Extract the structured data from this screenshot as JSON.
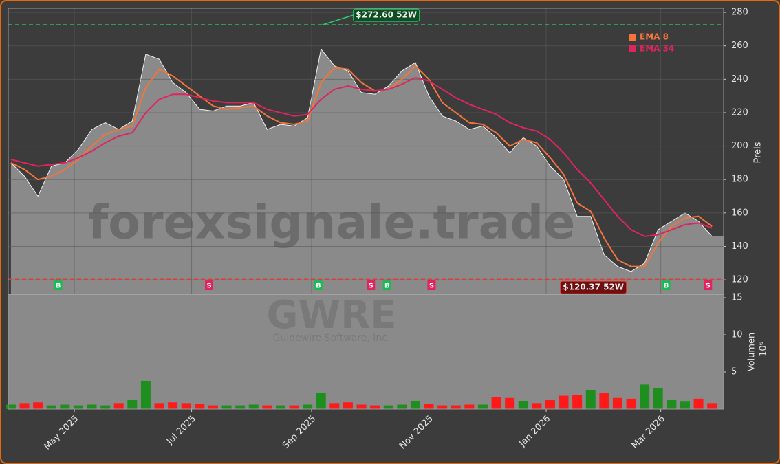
{
  "chart_data": {
    "type": "stock",
    "watermark": "forexsignale.trade",
    "ticker": "GWRE",
    "company": "Guidewire Software, Inc.",
    "y_label": "Preis",
    "x": [
      0,
      1,
      2,
      3,
      4,
      5,
      6,
      7,
      8,
      9,
      10,
      11,
      12,
      13,
      14,
      15,
      16,
      17,
      18,
      19,
      20,
      21,
      22,
      23,
      24,
      25,
      26,
      27,
      28,
      29,
      30,
      31,
      32,
      33,
      34,
      35,
      36,
      37,
      38,
      39,
      40,
      41,
      42,
      43,
      44,
      45,
      46,
      47,
      48,
      49,
      50,
      51,
      52
    ],
    "xlim": [
      -0.2,
      52.86
    ],
    "xticks": [
      {
        "value": 4.7,
        "label": "May 2025"
      },
      {
        "value": 13.4,
        "label": "Jul 2025"
      },
      {
        "value": 22.3,
        "label": "Sep 2025"
      },
      {
        "value": 31.0,
        "label": "Nov 2025"
      },
      {
        "value": 39.7,
        "label": "Jan 2026"
      },
      {
        "value": 48.2,
        "label": "Mar 2026"
      }
    ],
    "close": [
      190,
      182,
      170,
      188,
      190,
      198,
      210,
      214,
      210,
      215,
      255,
      252,
      238,
      232,
      222,
      221,
      224,
      224,
      226,
      210,
      213,
      212,
      217,
      258,
      248,
      245,
      232,
      231,
      236,
      245,
      250,
      230,
      218,
      215,
      210,
      212,
      205,
      196,
      205,
      200,
      188,
      180,
      158,
      158,
      135,
      128,
      125,
      130,
      150,
      155,
      160,
      155,
      146
    ],
    "close_color": "#8a8a8a",
    "series": [
      {
        "name": "EMA 8",
        "color": "#f4743b",
        "values": [
          190,
          186,
          180,
          182,
          186,
          192,
          200,
          207,
          210,
          212,
          235,
          246,
          242,
          236,
          230,
          224,
          222,
          223,
          224,
          218,
          214,
          213,
          215,
          238,
          247,
          246,
          238,
          233,
          234,
          240,
          248,
          240,
          226,
          220,
          214,
          213,
          208,
          200,
          204,
          202,
          193,
          183,
          166,
          161,
          145,
          132,
          128,
          128,
          142,
          152,
          157,
          158,
          152
        ]
      },
      {
        "name": "EMA 34",
        "color": "#e0245e",
        "values": [
          192,
          190,
          188,
          189,
          190,
          193,
          197,
          202,
          206,
          208,
          220,
          228,
          231,
          231,
          229,
          227,
          226,
          226,
          226,
          222,
          220,
          218,
          219,
          228,
          234,
          236,
          234,
          233,
          234,
          237,
          241,
          239,
          234,
          229,
          225,
          222,
          219,
          214,
          211,
          209,
          204,
          196,
          186,
          178,
          168,
          158,
          150,
          146,
          147,
          150,
          153,
          154,
          151
        ]
      }
    ],
    "ylim": [
      111.4,
      282.5
    ],
    "yticks": [
      120,
      140,
      160,
      180,
      200,
      220,
      240,
      260,
      280
    ],
    "grid": true,
    "legend": "upper right",
    "high": {
      "value": 272.6,
      "x": 23.1,
      "label": "$272.60 52W",
      "color": "#2ecc71"
    },
    "low": {
      "value": 120.37,
      "x": 45.7,
      "label": "$120.37 52W",
      "color": "#e53935"
    },
    "signals": [
      {
        "x": 3.5,
        "label": "B",
        "color": "#1db954"
      },
      {
        "x": 14.7,
        "label": "S",
        "color": "#e0245e"
      },
      {
        "x": 22.8,
        "label": "B",
        "color": "#1db954"
      },
      {
        "x": 26.7,
        "label": "S",
        "color": "#e0245e"
      },
      {
        "x": 27.9,
        "label": "B",
        "color": "#1db954"
      },
      {
        "x": 31.2,
        "label": "S",
        "color": "#e0245e"
      },
      {
        "x": 48.6,
        "label": "B",
        "color": "#1db954"
      },
      {
        "x": 51.7,
        "label": "S",
        "color": "#e0245e"
      }
    ],
    "volume": {
      "label": "Volumen",
      "unit": "10⁶",
      "values": [
        0.6,
        0.8,
        0.9,
        0.5,
        0.6,
        0.5,
        0.6,
        0.5,
        0.8,
        1.2,
        3.8,
        0.8,
        0.9,
        0.8,
        0.7,
        0.5,
        0.5,
        0.5,
        0.6,
        0.5,
        0.5,
        0.5,
        0.6,
        2.2,
        0.8,
        0.9,
        0.6,
        0.5,
        0.5,
        0.6,
        1.1,
        0.7,
        0.5,
        0.5,
        0.6,
        0.6,
        1.6,
        1.5,
        1.1,
        0.8,
        1.2,
        1.8,
        1.9,
        2.5,
        2.2,
        1.5,
        1.4,
        3.3,
        2.8,
        1.2,
        1.0,
        1.4,
        0.8
      ],
      "up_color": "#1e8f1e",
      "down_color": "#ff1a1a",
      "ylim": [
        0,
        15.46
      ],
      "yticks": [
        5,
        10,
        15
      ]
    }
  }
}
